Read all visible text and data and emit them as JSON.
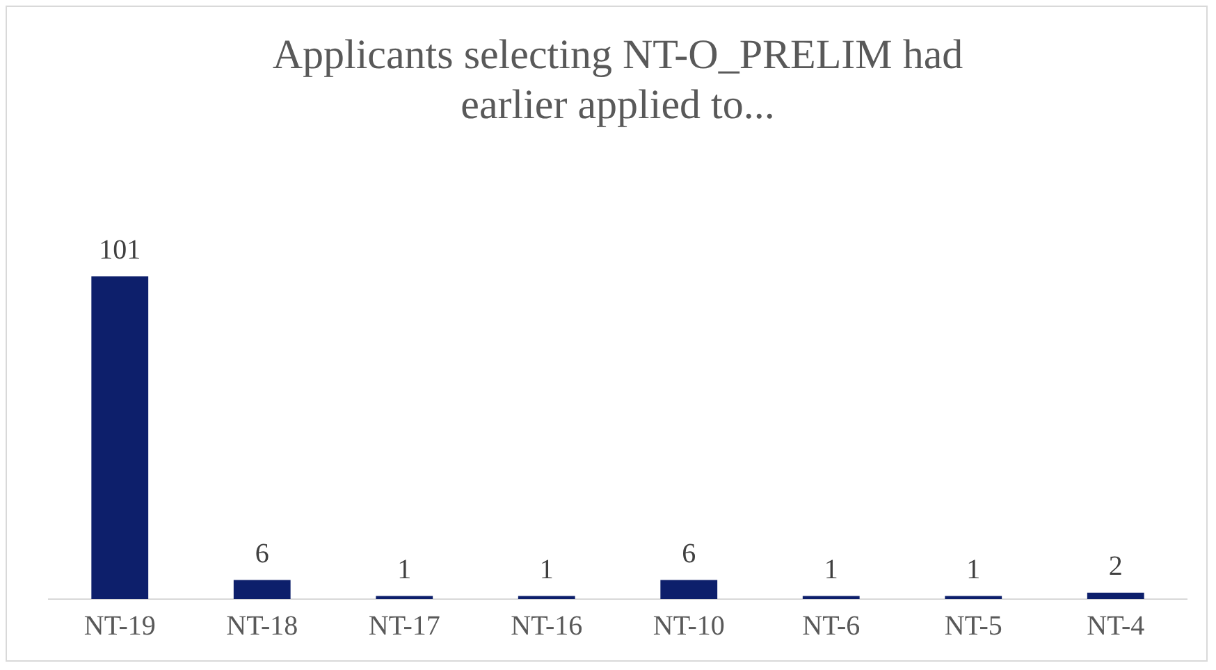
{
  "chart_data": {
    "type": "bar",
    "title": "Applicants selecting NT-O_PRELIM had earlier applied to...",
    "categories": [
      "NT-19",
      "NT-18",
      "NT-17",
      "NT-16",
      "NT-10",
      "NT-6",
      "NT-5",
      "NT-4"
    ],
    "values": [
      101,
      6,
      1,
      1,
      6,
      1,
      1,
      2
    ],
    "color": "#0d1f6b",
    "data_labels": true,
    "grid": false,
    "legend": false
  }
}
